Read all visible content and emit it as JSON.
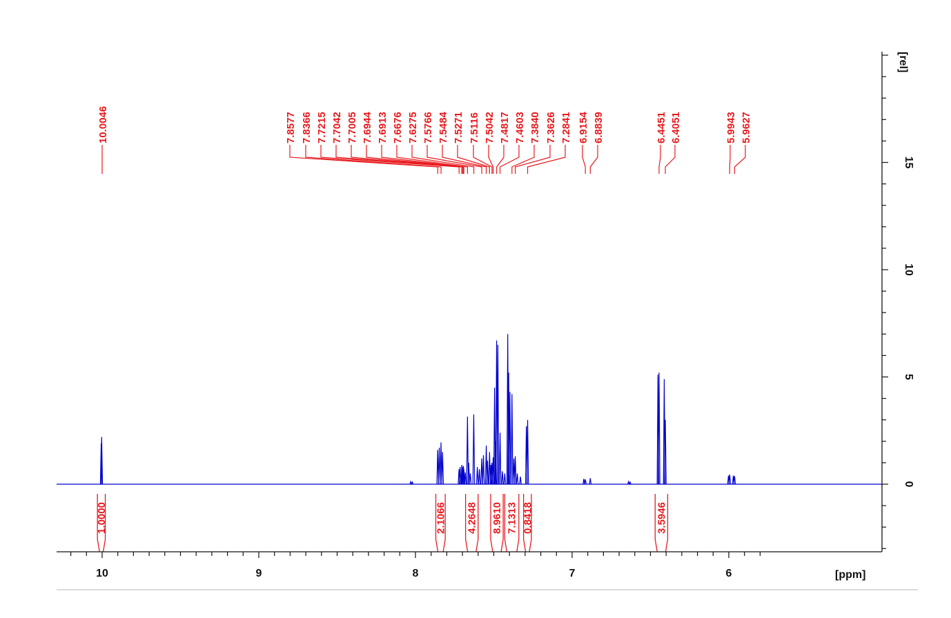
{
  "chart_data": {
    "type": "line",
    "xlabel": "[ppm]",
    "ylabel": "[rel]",
    "x_reversed": true,
    "xlim": [
      10.3,
      5.82
    ],
    "ylim": [
      -3.0,
      20.0
    ],
    "x_ticks": [
      "10",
      "9",
      "8",
      "7",
      "6"
    ],
    "y_ticks": [
      "0",
      "5",
      "10",
      "15"
    ],
    "colors": {
      "spectrum": "#0000cc",
      "annotation": "#e8191d",
      "axis": "#111111"
    },
    "peak_labels": [
      "10.0046",
      "7.8577",
      "7.8366",
      "7.7215",
      "7.7042",
      "7.7005",
      "7.6944",
      "7.6913",
      "7.6676",
      "7.6275",
      "7.5766",
      "7.5484",
      "7.5271",
      "7.5116",
      "7.5042",
      "7.4817",
      "7.4603",
      "7.3840",
      "7.3626",
      "7.2841",
      "6.9154",
      "6.8839",
      "6.4451",
      "6.4051",
      "5.9943",
      "5.9627"
    ],
    "integrals": [
      {
        "label": "1.0000",
        "from": 10.03,
        "to": 9.98
      },
      {
        "label": "2.1066",
        "from": 7.87,
        "to": 7.81
      },
      {
        "label": "4.2648",
        "from": 7.68,
        "to": 7.6
      },
      {
        "label": "8.9610",
        "from": 7.52,
        "to": 7.44
      },
      {
        "label": "7.1313",
        "from": 7.43,
        "to": 7.34
      },
      {
        "label": "0.8418",
        "from": 7.31,
        "to": 7.26
      },
      {
        "label": "3.5946",
        "from": 6.47,
        "to": 6.39
      }
    ],
    "spectrum_peaks": [
      {
        "x": 10.006,
        "y": 1.9
      },
      {
        "x": 10.003,
        "y": 2.2
      },
      {
        "x": 8.03,
        "y": 0.12
      },
      {
        "x": 8.02,
        "y": 0.1
      },
      {
        "x": 7.858,
        "y": 1.6
      },
      {
        "x": 7.848,
        "y": 1.7
      },
      {
        "x": 7.837,
        "y": 1.95
      },
      {
        "x": 7.827,
        "y": 1.5
      },
      {
        "x": 7.722,
        "y": 0.7
      },
      {
        "x": 7.715,
        "y": 0.8
      },
      {
        "x": 7.704,
        "y": 0.9
      },
      {
        "x": 7.7,
        "y": 0.8
      },
      {
        "x": 7.694,
        "y": 0.85
      },
      {
        "x": 7.691,
        "y": 0.7
      },
      {
        "x": 7.682,
        "y": 0.55
      },
      {
        "x": 7.668,
        "y": 3.15
      },
      {
        "x": 7.66,
        "y": 1.0
      },
      {
        "x": 7.65,
        "y": 0.5
      },
      {
        "x": 7.628,
        "y": 3.25
      },
      {
        "x": 7.605,
        "y": 0.8
      },
      {
        "x": 7.592,
        "y": 0.7
      },
      {
        "x": 7.577,
        "y": 1.2
      },
      {
        "x": 7.566,
        "y": 1.35
      },
      {
        "x": 7.548,
        "y": 1.8
      },
      {
        "x": 7.54,
        "y": 1.1
      },
      {
        "x": 7.527,
        "y": 1.5
      },
      {
        "x": 7.518,
        "y": 0.9
      },
      {
        "x": 7.512,
        "y": 1.0
      },
      {
        "x": 7.504,
        "y": 1.25
      },
      {
        "x": 7.495,
        "y": 4.5
      },
      {
        "x": 7.49,
        "y": 2.0
      },
      {
        "x": 7.482,
        "y": 6.7
      },
      {
        "x": 7.474,
        "y": 6.5
      },
      {
        "x": 7.46,
        "y": 2.4
      },
      {
        "x": 7.445,
        "y": 0.6
      },
      {
        "x": 7.43,
        "y": 0.5
      },
      {
        "x": 7.411,
        "y": 7.0
      },
      {
        "x": 7.405,
        "y": 5.2
      },
      {
        "x": 7.397,
        "y": 4.3
      },
      {
        "x": 7.384,
        "y": 4.2
      },
      {
        "x": 7.372,
        "y": 1.2
      },
      {
        "x": 7.363,
        "y": 1.3
      },
      {
        "x": 7.35,
        "y": 0.5
      },
      {
        "x": 7.33,
        "y": 0.35
      },
      {
        "x": 7.292,
        "y": 2.7
      },
      {
        "x": 7.284,
        "y": 3.0
      },
      {
        "x": 6.925,
        "y": 0.25
      },
      {
        "x": 6.915,
        "y": 0.22
      },
      {
        "x": 6.884,
        "y": 0.28
      },
      {
        "x": 6.64,
        "y": 0.12
      },
      {
        "x": 6.63,
        "y": 0.1
      },
      {
        "x": 6.452,
        "y": 5.1
      },
      {
        "x": 6.445,
        "y": 5.2
      },
      {
        "x": 6.412,
        "y": 4.9
      },
      {
        "x": 6.405,
        "y": 3.0
      },
      {
        "x": 6.002,
        "y": 0.4
      },
      {
        "x": 5.994,
        "y": 0.45
      },
      {
        "x": 5.971,
        "y": 0.4
      },
      {
        "x": 5.963,
        "y": 0.38
      }
    ]
  }
}
